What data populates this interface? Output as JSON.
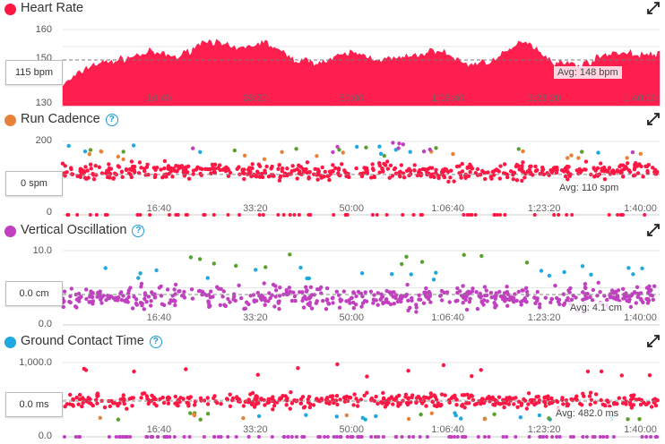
{
  "x_tick_labels": [
    "16:40",
    "33:20",
    "50:00",
    "1:06:40",
    "1:23:20",
    "1:40:00"
  ],
  "colors": {
    "heart": "#ff1744",
    "cadence_dot": "#e8823a",
    "oscillation_dot": "#c040c0",
    "ground_dot": "#20a8e0",
    "green": "#5aa02c",
    "help": "#1a9cd8"
  },
  "panels": [
    {
      "id": "heart_rate",
      "title": "Heart Rate",
      "has_help": false,
      "y_labels": [
        "160",
        "150",
        "140",
        "130"
      ],
      "cursor_value": "115 bpm",
      "avg_label": "Avg: 148 bpm"
    },
    {
      "id": "run_cadence",
      "title": "Run Cadence",
      "has_help": true,
      "y_labels": [
        "200",
        "100",
        "0"
      ],
      "cursor_value": "0 spm",
      "avg_label": "Avg: 110 spm"
    },
    {
      "id": "vertical_oscillation",
      "title": "Vertical Oscillation",
      "has_help": true,
      "y_labels": [
        "10.0",
        "5.0",
        "0.0"
      ],
      "cursor_value": "0.0 cm",
      "avg_label": "Avg: 4.1 cm"
    },
    {
      "id": "ground_contact_time",
      "title": "Ground Contact Time",
      "has_help": true,
      "y_labels": [
        "1,000.0",
        "500.0",
        "0.0"
      ],
      "cursor_value": "0.0 ms",
      "avg_label": "Avg: 482.0 ms"
    }
  ],
  "chart_data": [
    {
      "type": "area",
      "title": "Heart Rate",
      "ylim": [
        130,
        160
      ],
      "x_ticks": [
        "16:40",
        "33:20",
        "50:00",
        "1:06:40",
        "1:23:20",
        "1:40:00"
      ],
      "x": [
        0,
        300,
        600,
        900,
        1200,
        1500,
        1800,
        2100,
        2400,
        2700,
        3000,
        3300,
        3600,
        3900,
        4200,
        4500,
        4800,
        5100,
        5400,
        5700,
        6000
      ],
      "values": [
        138,
        146,
        148,
        151,
        149,
        156,
        152,
        155,
        148,
        147,
        151,
        148,
        149,
        152,
        146,
        148,
        156,
        147,
        146,
        151,
        150
      ],
      "avg": 148,
      "unit": "bpm"
    },
    {
      "type": "scatter",
      "title": "Run Cadence",
      "ylim": [
        0,
        200
      ],
      "x_ticks": [
        "16:40",
        "33:20",
        "50:00",
        "1:06:40",
        "1:23:20",
        "1:40:00"
      ],
      "avg": 110,
      "unit": "spm",
      "typical_range": [
        80,
        150
      ],
      "outliers_high": [
        160,
        200
      ],
      "zero_values": true
    },
    {
      "type": "scatter",
      "title": "Vertical Oscillation",
      "ylim": [
        0,
        10
      ],
      "x_ticks": [
        "16:40",
        "33:20",
        "50:00",
        "1:06:40",
        "1:23:20",
        "1:40:00"
      ],
      "avg": 4.1,
      "unit": "cm",
      "typical_range": [
        1.5,
        6
      ],
      "outliers_high": [
        6,
        10
      ]
    },
    {
      "type": "scatter",
      "title": "Ground Contact Time",
      "ylim": [
        0,
        1000
      ],
      "x_ticks": [
        "16:40",
        "33:20",
        "50:00",
        "1:06:40",
        "1:23:20",
        "1:40:00"
      ],
      "avg": 482,
      "unit": "ms",
      "typical_range": [
        350,
        650
      ],
      "outliers": [
        [
          200,
          300
        ],
        [
          800,
          950
        ]
      ],
      "zero_values": true
    }
  ]
}
